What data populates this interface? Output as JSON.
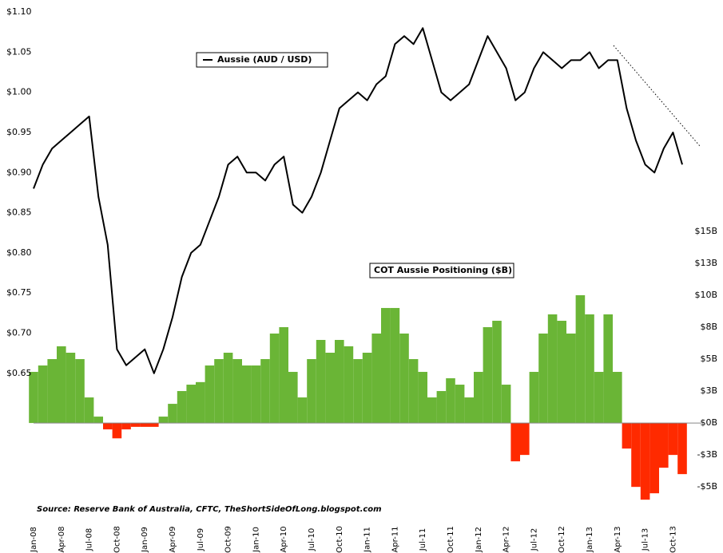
{
  "chart_data": {
    "type": "line_bar",
    "categories": [
      "Jan-08",
      null,
      null,
      "Apr-08",
      null,
      null,
      "Jul-08",
      null,
      null,
      "Oct-08",
      null,
      null,
      "Jan-09",
      null,
      null,
      "Apr-09",
      null,
      null,
      "Jul-09",
      null,
      null,
      "Oct-09",
      null,
      null,
      "Jan-10",
      null,
      null,
      "Apr-10",
      null,
      null,
      "Jul-10",
      null,
      null,
      "Oct-10",
      null,
      null,
      "Jan-11",
      null,
      null,
      "Apr-11",
      null,
      null,
      "Jul-11",
      null,
      null,
      "Oct-11",
      null,
      null,
      "Jan-12",
      null,
      null,
      "Apr-12",
      null,
      null,
      "Jul-12",
      null,
      null,
      "Oct-12",
      null,
      null,
      "Jan-13",
      null,
      null,
      "Apr-13",
      null,
      null,
      "Jul-13",
      null,
      null,
      "Oct-13",
      null
    ],
    "series": [
      {
        "name": "Aussie (AUD / USD)",
        "color": "#000000",
        "kind": "line",
        "values": [
          0.88,
          0.91,
          0.93,
          0.94,
          0.95,
          0.96,
          0.97,
          0.87,
          0.81,
          0.68,
          0.66,
          0.67,
          0.68,
          0.65,
          0.68,
          0.72,
          0.77,
          0.8,
          0.81,
          0.84,
          0.87,
          0.91,
          0.92,
          0.9,
          0.9,
          0.89,
          0.91,
          0.92,
          0.86,
          0.85,
          0.87,
          0.9,
          0.94,
          0.98,
          0.99,
          1.0,
          0.99,
          1.01,
          1.02,
          1.06,
          1.07,
          1.06,
          1.08,
          1.04,
          1.0,
          0.99,
          1.0,
          1.01,
          1.04,
          1.07,
          1.05,
          1.03,
          0.99,
          1.0,
          1.03,
          1.05,
          1.04,
          1.03,
          1.04,
          1.04,
          1.05,
          1.03,
          1.04,
          1.04,
          0.98,
          0.94,
          0.91,
          0.9,
          0.93,
          0.95,
          0.91
        ]
      },
      {
        "name": "COT Aussie Positioning ($B)",
        "color": "#6ab536",
        "negative_color": "#ff2a00",
        "kind": "bar",
        "axis": "y2",
        "values": [
          4,
          4.5,
          5,
          6,
          5.5,
          5,
          2,
          0.5,
          -0.5,
          -1.2,
          -0.5,
          -0.3,
          -0.3,
          -0.3,
          0.5,
          1.5,
          2.5,
          3,
          3.2,
          4.5,
          5,
          5.5,
          5,
          4.5,
          4.5,
          5,
          7,
          7.5,
          4,
          2,
          5,
          6.5,
          5.5,
          6.5,
          6,
          5,
          5.5,
          7,
          9,
          9,
          7,
          5,
          4,
          2,
          2.5,
          3.5,
          3,
          2,
          4,
          7.5,
          8,
          3,
          -3,
          -2.5,
          4,
          7,
          8.5,
          8,
          7,
          10,
          8.5,
          4,
          8.5,
          4,
          -2,
          -5,
          -6,
          -5.5,
          -3.5,
          -2.5,
          -4
        ]
      }
    ],
    "ylim": [
      0.464,
      1.107
    ],
    "yticks": [
      {
        "value": 0.65,
        "label": "$0.65"
      },
      {
        "value": 0.7,
        "label": "$0.70"
      },
      {
        "value": 0.75,
        "label": "$0.75"
      },
      {
        "value": 0.8,
        "label": "$0.80"
      },
      {
        "value": 0.85,
        "label": "$0.85"
      },
      {
        "value": 0.9,
        "label": "$0.90"
      },
      {
        "value": 0.95,
        "label": "$0.95"
      },
      {
        "value": 1.0,
        "label": "$1.00"
      },
      {
        "value": 1.05,
        "label": "$1.05"
      },
      {
        "value": 1.1,
        "label": "$1.10"
      }
    ],
    "y2lim": [
      -7.8,
      32.6
    ],
    "y2ticks": [
      {
        "value": -5,
        "label": "-$5B"
      },
      {
        "value": -2.5,
        "label": "-$3B"
      },
      {
        "value": 0,
        "label": "$0B"
      },
      {
        "value": 2.5,
        "label": "$3B"
      },
      {
        "value": 5,
        "label": "$5B"
      },
      {
        "value": 7.5,
        "label": "$8B"
      },
      {
        "value": 10,
        "label": "$10B"
      },
      {
        "value": 12.5,
        "label": "$13B"
      },
      {
        "value": 15,
        "label": "$15B"
      }
    ],
    "source": "Source: Reserve Bank of Australia, CFTC, TheShortSideOfLong.blogspot.com"
  }
}
